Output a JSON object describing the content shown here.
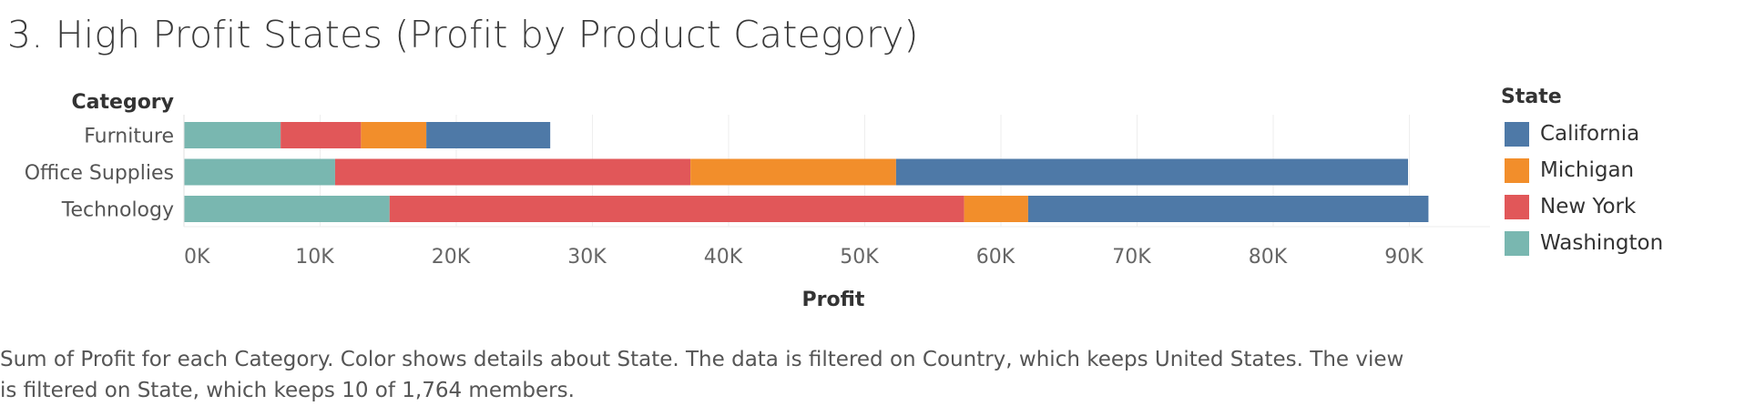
{
  "title": "3. High Profit States (Profit by Product Category)",
  "caption": "Sum of Profit for each Category.  Color shows details about State. The data is filtered on Country, which keeps United States. The view is filtered on State, which keeps 10 of 1,764 members.",
  "chart_data": {
    "type": "bar",
    "orientation": "horizontal",
    "stacked": true,
    "title": "3. High Profit States (Profit by Product Category)",
    "ylabel": "Category",
    "xlabel": "Profit",
    "categories": [
      "Furniture",
      "Office Supplies",
      "Technology"
    ],
    "series": [
      {
        "name": "Washington",
        "color": "#79b7b0",
        "values": [
          7100,
          11100,
          15100
        ]
      },
      {
        "name": "New York",
        "color": "#e15759",
        "values": [
          5900,
          26100,
          42200
        ]
      },
      {
        "name": "Michigan",
        "color": "#f28e2b",
        "values": [
          4800,
          15100,
          4700
        ]
      },
      {
        "name": "California",
        "color": "#4e79a7",
        "values": [
          9100,
          37600,
          29400
        ]
      }
    ],
    "xlim": [
      0,
      96000
    ],
    "xticks": [
      0,
      10000,
      20000,
      30000,
      40000,
      50000,
      60000,
      70000,
      80000,
      90000
    ],
    "xtick_labels": [
      "0K",
      "10K",
      "20K",
      "30K",
      "40K",
      "50K",
      "60K",
      "70K",
      "80K",
      "90K"
    ],
    "grid": true,
    "legend": {
      "title": "State",
      "position": "right",
      "items": [
        {
          "name": "California",
          "color": "#4e79a7"
        },
        {
          "name": "Michigan",
          "color": "#f28e2b"
        },
        {
          "name": "New York",
          "color": "#e15759"
        },
        {
          "name": "Washington",
          "color": "#79b7b0"
        }
      ]
    }
  }
}
